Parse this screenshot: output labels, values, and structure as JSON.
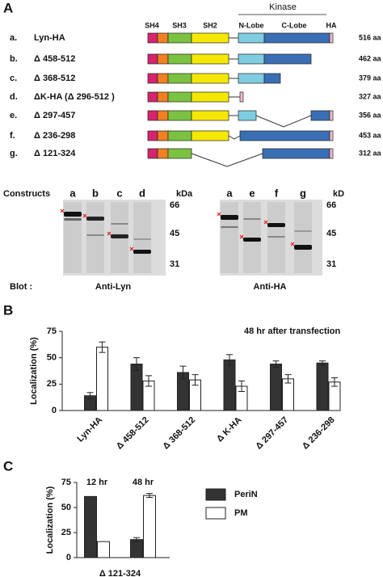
{
  "panel_a": {
    "label": "A",
    "kinase": "Kinase",
    "domains": [
      "SH4",
      "SH3",
      "SH2",
      "N-Lobe",
      "C-Lobe",
      "HA"
    ],
    "rows": [
      {
        "letter": "a.",
        "name": "Lyn-HA",
        "length": "516 aa"
      },
      {
        "letter": "b.",
        "name": "Δ 458-512",
        "length": "462 aa"
      },
      {
        "letter": "c.",
        "name": "Δ 368-512",
        "length": "379 aa"
      },
      {
        "letter": "d.",
        "name": "ΔK-HA (Δ 296-512 )",
        "length": "327 aa"
      },
      {
        "letter": "e.",
        "name": "Δ 297-457",
        "length": "356 aa"
      },
      {
        "letter": "f.",
        "name": "Δ 236-298",
        "length": "453 aa"
      },
      {
        "letter": "g.",
        "name": "Δ 121-324",
        "length": "312 aa"
      }
    ]
  },
  "blots": {
    "constructs": "Constructs",
    "blot": "Blot :",
    "left": {
      "lanes": [
        "a",
        "b",
        "c",
        "d"
      ],
      "unit": "kDa",
      "markers": [
        "66",
        "45",
        "31"
      ],
      "antibody": "Anti-Lyn"
    },
    "right": {
      "lanes": [
        "a",
        "e",
        "f",
        "g"
      ],
      "unit": "kD",
      "markers": [
        "66",
        "45",
        "31"
      ],
      "antibody": "Anti-HA"
    }
  },
  "chart_data": [
    {
      "panel": "B",
      "type": "bar",
      "ylabel": "Localization (%)",
      "annotation": "48 hr after transfection",
      "categories": [
        "Lyn-HA",
        "Δ 458-512",
        "Δ 368-512",
        "Δ K-HA",
        "Δ 297-457",
        "Δ 236-298"
      ],
      "ylim": [
        0,
        75
      ],
      "yticks": [
        0,
        25,
        50,
        75
      ],
      "series": [
        {
          "color": "#333333",
          "values": [
            14,
            44,
            36,
            48,
            44,
            45
          ],
          "errors": [
            3,
            6,
            6,
            5,
            3,
            2
          ]
        },
        {
          "color": "#ffffff",
          "values": [
            60,
            28,
            29,
            23,
            30,
            27
          ],
          "errors": [
            5,
            5,
            5,
            5,
            4,
            4
          ]
        }
      ]
    },
    {
      "panel": "C",
      "type": "bar",
      "ylabel": "Localization (%)",
      "xlabel": "Δ 121-324",
      "categories": [
        "12 hr",
        "48 hr"
      ],
      "ylim": [
        0,
        75
      ],
      "yticks": [
        0,
        25,
        50,
        75
      ],
      "series": [
        {
          "name": "PeriN",
          "color": "#333333",
          "values": [
            61,
            18
          ],
          "errors": [
            null,
            2
          ]
        },
        {
          "name": "PM",
          "color": "#ffffff",
          "values": [
            16,
            62
          ],
          "errors": [
            null,
            2
          ]
        }
      ]
    }
  ]
}
